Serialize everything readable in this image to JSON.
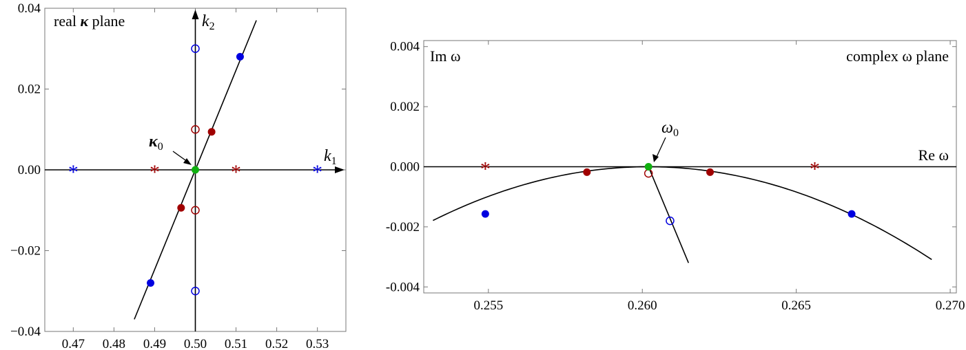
{
  "colors": {
    "blue": "#0000e0",
    "dark_red": "#a00000",
    "green": "#10b010",
    "black": "#000000"
  },
  "chart_data": [
    {
      "type": "scatter",
      "label_lines": {
        "main": "real ",
        "bold": "κ",
        "rest": " plane"
      },
      "xlim": [
        0.463,
        0.537
      ],
      "ylim": [
        -0.04,
        0.04
      ],
      "x_ticks": [
        0.47,
        0.48,
        0.49,
        0.5,
        0.51,
        0.52,
        0.53
      ],
      "x_tick_labels": [
        "0.47",
        "0.48",
        "0.49",
        "0.50",
        "0.51",
        "0.52",
        "0.53"
      ],
      "y_ticks": [
        0.04,
        0.02,
        0.0,
        -0.02,
        -0.04
      ],
      "y_tick_labels": [
        "0.04",
        "0.02",
        "0.00",
        "−0.02",
        "−0.04"
      ],
      "axis_labels": {
        "x": "k",
        "x_sub": "1",
        "y": "k",
        "y_sub": "2"
      },
      "annotation": {
        "text": "κ",
        "sub": "0",
        "x": 0.5,
        "y": 0.0
      },
      "lines": [
        {
          "points": [
            [
              0.485,
              -0.037
            ],
            [
              0.515,
              0.037
            ]
          ]
        }
      ],
      "series": [
        {
          "marker": "filled",
          "color": "blue",
          "points": [
            [
              0.511,
              0.028
            ],
            [
              0.489,
              -0.028
            ]
          ]
        },
        {
          "marker": "filled",
          "color": "dark_red",
          "points": [
            [
              0.504,
              0.0094
            ],
            [
              0.4965,
              -0.0094
            ]
          ]
        },
        {
          "marker": "open",
          "color": "blue",
          "points": [
            [
              0.5,
              0.03
            ],
            [
              0.5,
              -0.03
            ]
          ]
        },
        {
          "marker": "open",
          "color": "dark_red",
          "points": [
            [
              0.5,
              0.01
            ],
            [
              0.5,
              -0.01
            ]
          ]
        },
        {
          "marker": "star",
          "color": "blue",
          "points": [
            [
              0.47,
              0.0
            ],
            [
              0.53,
              0.0
            ]
          ]
        },
        {
          "marker": "star",
          "color": "dark_red",
          "points": [
            [
              0.49,
              0.0
            ],
            [
              0.51,
              0.0
            ]
          ]
        },
        {
          "marker": "filled",
          "color": "green",
          "points": [
            [
              0.5,
              0.0
            ]
          ]
        }
      ]
    },
    {
      "type": "scatter",
      "label": "complex ω plane",
      "xlim": [
        0.2529,
        0.2702
      ],
      "ylim": [
        -0.0042,
        0.0042
      ],
      "x_ticks": [
        0.255,
        0.26,
        0.265,
        0.27
      ],
      "x_tick_labels": [
        "0.255",
        "0.260",
        "0.265",
        "0.270"
      ],
      "y_ticks": [
        0.004,
        0.002,
        0.0,
        -0.002,
        -0.004
      ],
      "y_tick_labels": [
        "0.004",
        "0.002",
        "0.000",
        "-0.002",
        "-0.004"
      ],
      "axis_labels": {
        "y": "Im ω",
        "x": "Re ω"
      },
      "annotation": {
        "text": "ω",
        "sub": "0",
        "x": 0.2602,
        "y": 0.0
      },
      "curves": [
        {
          "name": "parabola",
          "vertex": [
            0.2602,
            0.0
          ],
          "coef": -36.5,
          "x_range": [
            0.2532,
            0.2694
          ]
        },
        {
          "name": "line",
          "points": [
            [
              0.2602,
              0.0
            ],
            [
              0.2615,
              -0.0032
            ]
          ]
        }
      ],
      "series": [
        {
          "marker": "filled",
          "color": "blue",
          "points": [
            [
              0.2549,
              -0.00157
            ],
            [
              0.2668,
              -0.00157
            ]
          ]
        },
        {
          "marker": "filled",
          "color": "dark_red",
          "points": [
            [
              0.2582,
              -0.00018
            ],
            [
              0.2622,
              -0.00018
            ]
          ]
        },
        {
          "marker": "open",
          "color": "blue",
          "points": [
            [
              0.2609,
              -0.0018
            ]
          ]
        },
        {
          "marker": "open",
          "color": "dark_red",
          "points": [
            [
              0.2602,
              -0.00022
            ]
          ]
        },
        {
          "marker": "star",
          "color": "dark_red",
          "points": [
            [
              0.2549,
              0.0
            ],
            [
              0.2656,
              0.0
            ]
          ]
        },
        {
          "marker": "filled",
          "color": "green",
          "points": [
            [
              0.2602,
              0.0
            ]
          ]
        }
      ]
    }
  ]
}
